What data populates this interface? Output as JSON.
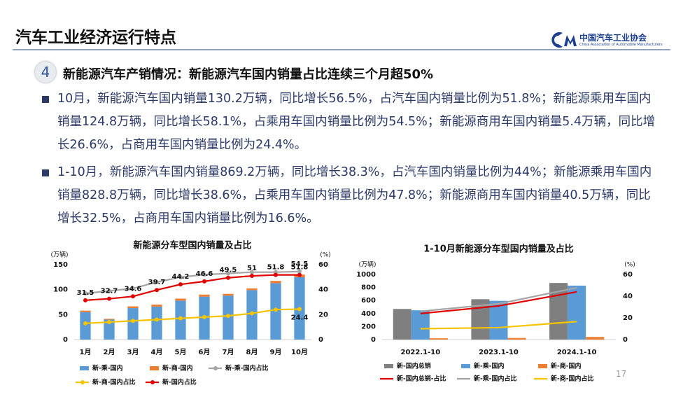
{
  "header": {
    "title": "汽车工业经济运行特点",
    "logo_text": "中国汽车工业协会",
    "logo_subtext": "China Association of Automobile Manufacturers"
  },
  "section": {
    "number": "4",
    "heading": "新能源汽车产销情况：新能源汽车国内销量占比连续三个月超50%"
  },
  "bullets": [
    "10月，新能源汽车国内销量130.2万辆，同比增长56.5%，占汽车国内销量比例为51.8%；新能源乘用车国内销量124.8万辆，同比增长58.1%，占乘用车国内销量比例为54.5%；新能源商用车国内销量5.4万辆，同比增长26.6%，占商用车国内销量比例为24.4%。",
    "1-10月，新能源汽车国内销量869.2万辆，同比增长38.3%，占汽车国内销量比例为44%；新能源乘用车国内销量828.8万辆，同比增长38.6%，占乘用车国内销量比例为47.8%；新能源商用车国内销量40.5万辆，同比增长32.5%，占商用车国内销量比例为16.6%。"
  ],
  "page_number": "17",
  "chart_data": [
    {
      "type": "bar",
      "title": "新能源分车型国内销量及占比",
      "y_label": "(万辆)",
      "y2_label": "(%)",
      "stacked": true,
      "grid": false,
      "categories": [
        "1月",
        "2月",
        "3月",
        "4月",
        "5月",
        "6月",
        "7月",
        "8月",
        "9月",
        "10月"
      ],
      "ylim": [
        0,
        150
      ],
      "yticks": [
        0,
        50,
        100,
        150
      ],
      "y2lim": [
        0,
        60
      ],
      "y2ticks": [
        0,
        20,
        40,
        60
      ],
      "series": [
        {
          "name": "新-乘-国内",
          "type": "bar",
          "color": "#5b9bd5",
          "values": [
            55,
            40,
            63,
            66,
            78,
            86,
            88,
            99,
            113,
            124.8
          ]
        },
        {
          "name": "新-商-国内",
          "type": "bar",
          "color": "#ed7d31",
          "values": [
            3,
            1.5,
            3.5,
            4,
            4,
            4,
            3.5,
            3.5,
            4.5,
            5.4
          ]
        },
        {
          "name": "新-乘-国内占比",
          "type": "line",
          "axis": "y2",
          "color": "#a5a5a5",
          "markers": true,
          "data_labels": "last",
          "values": [
            37,
            39,
            41,
            46,
            50,
            52,
            53,
            54,
            54,
            54.5
          ]
        },
        {
          "name": "新-商-国内占比",
          "type": "line",
          "axis": "y2",
          "color": "#f5c400",
          "markers": true,
          "data_labels": "last",
          "values": [
            13,
            14,
            15,
            16,
            17,
            18,
            19,
            21,
            24,
            24.4
          ]
        },
        {
          "name": "新-国内占比",
          "type": "line",
          "axis": "y2",
          "color": "#e00000",
          "markers": true,
          "data_labels": "all",
          "values": [
            31.5,
            32.7,
            34.6,
            39.7,
            44.2,
            46.6,
            49.5,
            51,
            51.8,
            51.8
          ]
        }
      ]
    },
    {
      "type": "bar",
      "title": "1-10月新能源分车型国内销量及占比",
      "y_label": "(万辆)",
      "y2_label": "(%)",
      "stacked": false,
      "grid": false,
      "categories": [
        "2022.1-10",
        "2023.1-10",
        "2024.1-10"
      ],
      "ylim": [
        0,
        1000
      ],
      "yticks": [
        0,
        200,
        400,
        600,
        800,
        1000
      ],
      "y2lim": [
        0,
        60
      ],
      "y2ticks": [
        0,
        20,
        40,
        60
      ],
      "series": [
        {
          "name": "新-国内总销",
          "type": "bar",
          "color": "#7f7f7f",
          "values": [
            470,
            620,
            869.2
          ]
        },
        {
          "name": "新-乘-国内",
          "type": "bar",
          "color": "#5b9bd5",
          "values": [
            450,
            595,
            828.8
          ]
        },
        {
          "name": "新-商-国内",
          "type": "bar",
          "color": "#ed7d31",
          "values": [
            20,
            25,
            40.5
          ]
        },
        {
          "name": "新-国内总销-占比",
          "type": "line",
          "axis": "y2",
          "color": "#e00000",
          "markers": false,
          "data_labels": "none",
          "values": [
            24,
            31,
            44
          ]
        },
        {
          "name": "新-乘-国内占比",
          "type": "line",
          "axis": "y2",
          "color": "#a5a5a5",
          "markers": false,
          "data_labels": "none",
          "values": [
            26,
            33,
            47.8
          ]
        },
        {
          "name": "新-商-国内占比",
          "type": "line",
          "axis": "y2",
          "color": "#f5c400",
          "markers": false,
          "data_labels": "none",
          "values": [
            10,
            11,
            16.6
          ]
        }
      ]
    }
  ]
}
